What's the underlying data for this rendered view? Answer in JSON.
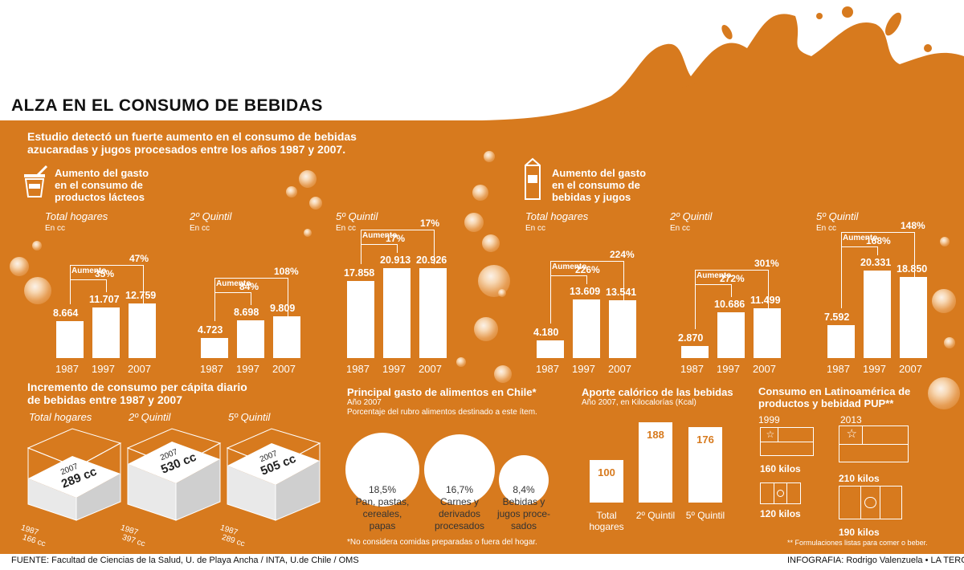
{
  "title": "ALZA EN EL CONSUMO DE BEBIDAS",
  "intro": [
    "Estudio detectó un fuerte aumento en el consumo de bebidas",
    "azucaradas y jugos procesados entre los años 1987 y 2007."
  ],
  "footer_source": "FUENTE: Facultad de Ciencias de la Salud, U. de Playa Ancha / INTA, U.de Chile / OMS",
  "footer_credit": "INFOGRAFIA: Rodrigo Valenzuela • LA TERCERA",
  "colors": {
    "accent": "#d77a1e",
    "text_dark": "#111111"
  },
  "icons": {
    "dairy": "yogurt-cup-icon",
    "drinks": "juice-carton-icon"
  },
  "dairy": {
    "title_lines": [
      "Aumento del gasto",
      "en el consumo de",
      "productos lácteos"
    ],
    "unit": "En cc",
    "aumento_label": "Aumento",
    "groups": [
      {
        "label": "Total hogares",
        "years": [
          "1987",
          "1997",
          "2007"
        ],
        "values": [
          8664,
          11707,
          12759
        ],
        "value_labels": [
          "8.664",
          "11.707",
          "12.759"
        ],
        "pct_mid": "35%",
        "pct_end": "47%"
      },
      {
        "label": "2º Quintil",
        "years": [
          "1987",
          "1997",
          "2007"
        ],
        "values": [
          4723,
          8698,
          9809
        ],
        "value_labels": [
          "4.723",
          "8.698",
          "9.809"
        ],
        "pct_mid": "84%",
        "pct_end": "108%"
      },
      {
        "label": "5º Quintil",
        "years": [
          "1987",
          "1997",
          "2007"
        ],
        "values": [
          17858,
          20913,
          20926
        ],
        "value_labels": [
          "17.858",
          "20.913",
          "20.926"
        ],
        "pct_mid": "17%",
        "pct_end": "17%"
      }
    ]
  },
  "drinks": {
    "title_lines": [
      "Aumento del gasto",
      "en el consumo de",
      "bebidas y jugos"
    ],
    "unit": "En cc",
    "aumento_label": "Aumento",
    "groups": [
      {
        "label": "Total hogares",
        "years": [
          "1987",
          "1997",
          "2007"
        ],
        "values": [
          4180,
          13609,
          13541
        ],
        "value_labels": [
          "4.180",
          "13.609",
          "13.541"
        ],
        "pct_mid": "226%",
        "pct_end": "224%"
      },
      {
        "label": "2º Quintil",
        "years": [
          "1987",
          "1997",
          "2007"
        ],
        "values": [
          2870,
          10686,
          11499
        ],
        "value_labels": [
          "2.870",
          "10.686",
          "11.499"
        ],
        "pct_mid": "272%",
        "pct_end": "301%"
      },
      {
        "label": "5º Quintil",
        "years": [
          "1987",
          "1997",
          "2007"
        ],
        "values": [
          7592,
          20331,
          18850
        ],
        "value_labels": [
          "7.592",
          "20.331",
          "18.850"
        ],
        "pct_mid": "168%",
        "pct_end": "148%"
      }
    ]
  },
  "percapita": {
    "title_lines": [
      "Incremento de consumo per cápita diario",
      "de bebidas entre 1987 y 2007"
    ],
    "groups": [
      {
        "label": "Total hogares",
        "y1987": "1987",
        "v1987": "166 cc",
        "y2007": "2007",
        "v2007": "289 cc"
      },
      {
        "label": "2º Quintil",
        "y1987": "1987",
        "v1987": "397 cc",
        "y2007": "2007",
        "v2007": "530 cc"
      },
      {
        "label": "5º Quintil",
        "y1987": "1987",
        "v1987": "289 cc",
        "y2007": "2007",
        "v2007": "505 cc"
      }
    ]
  },
  "food": {
    "title": "Principal gasto de alimentos en Chile*",
    "year": "Año 2007",
    "subtitle": "Porcentaje del rubro alimentos destinado a este ítem.",
    "footnote": "*No considera comidas preparadas o fuera del hogar.",
    "items": [
      {
        "value": 18.5,
        "pct": "18,5%",
        "lines": [
          "Pan, pastas,",
          "cereales,",
          "papas"
        ]
      },
      {
        "value": 16.7,
        "pct": "16,7%",
        "lines": [
          "Carnes y",
          "derivados",
          "procesados"
        ]
      },
      {
        "value": 8.4,
        "pct": "8,4%",
        "lines": [
          "Bebidas y",
          "jugos proce-",
          "sados"
        ]
      }
    ]
  },
  "caloric": {
    "title": "Aporte calórico de las bebidas",
    "subtitle": "Año 2007, en Kilocalorías (Kcal)",
    "items": [
      {
        "value": 100,
        "label_lines": [
          "Total",
          "hogares"
        ]
      },
      {
        "value": 188,
        "label_lines": [
          "2º Quintil"
        ]
      },
      {
        "value": 176,
        "label_lines": [
          "5º Quintil"
        ]
      }
    ]
  },
  "latam": {
    "title_lines": [
      "Consumo en Latinoamérica de",
      "productos y bebidad PUP**"
    ],
    "years": [
      "1999",
      "2013"
    ],
    "items": [
      {
        "year": "1999",
        "value": 160,
        "label": "160 kilos",
        "flag": "chile-flag-icon"
      },
      {
        "year": "1999",
        "value": 120,
        "label": "120 kilos",
        "flag": "mexico-flag-icon"
      },
      {
        "year": "2013",
        "value": 210,
        "label": "210 kilos",
        "flag": "chile-flag-icon"
      },
      {
        "year": "2013",
        "value": 190,
        "label": "190 kilos",
        "flag": "mexico-flag-icon"
      }
    ],
    "footnote": "** Formulaciones listas para comer o beber."
  },
  "chart_data": [
    {
      "type": "bar",
      "title": "Aumento del gasto en el consumo de productos lácteos",
      "ylabel": "En cc",
      "categories": [
        "1987",
        "1997",
        "2007"
      ],
      "series": [
        {
          "name": "Total hogares",
          "values": [
            8664,
            11707,
            12759
          ]
        },
        {
          "name": "2º Quintil",
          "values": [
            4723,
            8698,
            9809
          ]
        },
        {
          "name": "5º Quintil",
          "values": [
            17858,
            20913,
            20926
          ]
        }
      ]
    },
    {
      "type": "bar",
      "title": "Aumento del gasto en el consumo de bebidas y jugos",
      "ylabel": "En cc",
      "categories": [
        "1987",
        "1997",
        "2007"
      ],
      "series": [
        {
          "name": "Total hogares",
          "values": [
            4180,
            13609,
            13541
          ]
        },
        {
          "name": "2º Quintil",
          "values": [
            2870,
            10686,
            11499
          ]
        },
        {
          "name": "5º Quintil",
          "values": [
            7592,
            20331,
            18850
          ]
        }
      ]
    },
    {
      "type": "bar",
      "title": "Incremento de consumo per cápita diario de bebidas entre 1987 y 2007",
      "ylabel": "cc",
      "categories": [
        "Total hogares",
        "2º Quintil",
        "5º Quintil"
      ],
      "series": [
        {
          "name": "1987",
          "values": [
            166,
            397,
            289
          ]
        },
        {
          "name": "2007",
          "values": [
            289,
            530,
            505
          ]
        }
      ]
    },
    {
      "type": "bar",
      "title": "Principal gasto de alimentos en Chile*",
      "categories": [
        "Pan, pastas, cereales, papas",
        "Carnes y derivados procesados",
        "Bebidas y jugos procesados"
      ],
      "values": [
        18.5,
        16.7,
        8.4
      ]
    },
    {
      "type": "bar",
      "title": "Aporte calórico de las bebidas",
      "ylabel": "Kcal",
      "categories": [
        "Total hogares",
        "2º Quintil",
        "5º Quintil"
      ],
      "values": [
        100,
        188,
        176
      ]
    },
    {
      "type": "bar",
      "title": "Consumo en Latinoamérica de productos y bebidad PUP**",
      "ylabel": "kilos",
      "categories": [
        "1999",
        "2013"
      ],
      "series": [
        {
          "name": "Chile",
          "values": [
            160,
            210
          ]
        },
        {
          "name": "México",
          "values": [
            120,
            190
          ]
        }
      ]
    }
  ]
}
